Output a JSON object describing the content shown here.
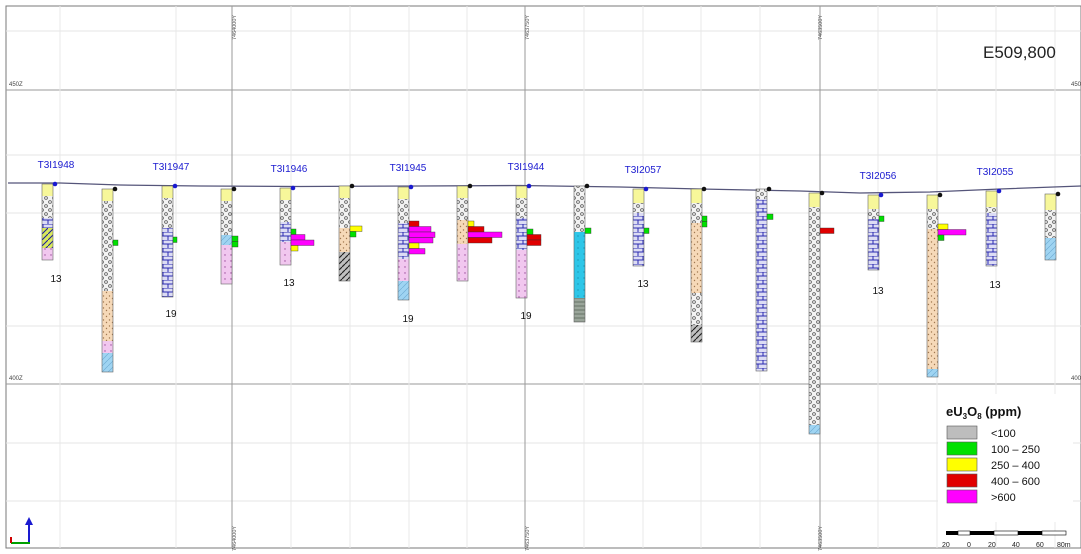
{
  "section_label": "E509,800",
  "elevation_labels": {
    "top": "450Z",
    "bottom": "400Z",
    "top_right": "450",
    "bottom_right": "400"
  },
  "northing_labels": [
    "7464000Y",
    "7463750Y",
    "7463500Y"
  ],
  "holes": [
    {
      "id": "T3I1948",
      "value": "13",
      "assays": []
    },
    {
      "id": "",
      "value": "",
      "assays": [
        {
          "grade": "100-250",
          "ppm_class": 1
        }
      ]
    },
    {
      "id": "T3I1947",
      "value": "19",
      "assays": [
        {
          "grade": "100-250",
          "ppm_class": 1
        }
      ]
    },
    {
      "id": "",
      "value": "",
      "assays": [
        {
          "grade": "100-250",
          "ppm_class": 1
        },
        {
          "grade": "100-250",
          "ppm_class": 1
        }
      ]
    },
    {
      "id": "T3I1946",
      "value": "13",
      "assays": [
        {
          "grade": "100-250",
          "ppm_class": 1
        },
        {
          "grade": ">600",
          "ppm_class": 4
        },
        {
          "grade": ">600",
          "ppm_class": 4
        },
        {
          "grade": "250-400",
          "ppm_class": 2
        }
      ]
    },
    {
      "id": "",
      "value": "",
      "assays": [
        {
          "grade": "250-400",
          "ppm_class": 2
        },
        {
          "grade": "100-250",
          "ppm_class": 1
        }
      ]
    },
    {
      "id": "T3I1945",
      "value": "19",
      "assays": [
        {
          "grade": "400-600",
          "ppm_class": 3
        },
        {
          "grade": ">600",
          "ppm_class": 4
        },
        {
          "grade": ">600",
          "ppm_class": 4
        },
        {
          "grade": ">600",
          "ppm_class": 4
        },
        {
          "grade": "250-400",
          "ppm_class": 2
        },
        {
          "grade": ">600",
          "ppm_class": 4
        }
      ]
    },
    {
      "id": "",
      "value": "",
      "assays": [
        {
          "grade": "250-400",
          "ppm_class": 2
        },
        {
          "grade": "400-600",
          "ppm_class": 3
        },
        {
          "grade": ">600",
          "ppm_class": 4
        },
        {
          "grade": "400-600",
          "ppm_class": 3
        }
      ]
    },
    {
      "id": "T3I1944",
      "value": "19",
      "assays": [
        {
          "grade": "100-250",
          "ppm_class": 1
        },
        {
          "grade": "400-600",
          "ppm_class": 3
        },
        {
          "grade": "400-600",
          "ppm_class": 3
        }
      ]
    },
    {
      "id": "",
      "value": "",
      "assays": [
        {
          "grade": "100-250",
          "ppm_class": 1
        }
      ]
    },
    {
      "id": "T3I2057",
      "value": "13",
      "assays": [
        {
          "grade": "100-250",
          "ppm_class": 1
        }
      ]
    },
    {
      "id": "",
      "value": "",
      "assays": [
        {
          "grade": "100-250",
          "ppm_class": 1
        },
        {
          "grade": "100-250",
          "ppm_class": 1
        }
      ]
    },
    {
      "id": "",
      "value": "",
      "assays": [
        {
          "grade": "100-250",
          "ppm_class": 1
        }
      ]
    },
    {
      "id": "",
      "value": "",
      "assays": [
        {
          "grade": "400-600",
          "ppm_class": 3
        }
      ]
    },
    {
      "id": "T3I2056",
      "value": "13",
      "assays": [
        {
          "grade": "100-250",
          "ppm_class": 1
        }
      ]
    },
    {
      "id": "",
      "value": "",
      "assays": [
        {
          "grade": "250-400",
          "ppm_class": 2
        },
        {
          "grade": ">600",
          "ppm_class": 4
        },
        {
          "grade": "100-250",
          "ppm_class": 1
        }
      ]
    },
    {
      "id": "T3I2055",
      "value": "13",
      "assays": []
    },
    {
      "id": "",
      "value": "",
      "assays": []
    }
  ],
  "legend": {
    "title_prefix": "eU",
    "title_sub1": "3",
    "title_mid": "O",
    "title_sub2": "8",
    "title_suffix": " (ppm)",
    "items": [
      {
        "label": "<100",
        "color": "#bdbdbd"
      },
      {
        "label": "100 – 250",
        "color": "#00e000"
      },
      {
        "label": "250 – 400",
        "color": "#ffff00"
      },
      {
        "label": "400 – 600",
        "color": "#e00000"
      },
      {
        "label": ">600",
        "color": "#ff00ff"
      }
    ]
  },
  "scale_bar": {
    "labels": [
      "20",
      "0",
      "20",
      "40",
      "60",
      "80m"
    ]
  }
}
